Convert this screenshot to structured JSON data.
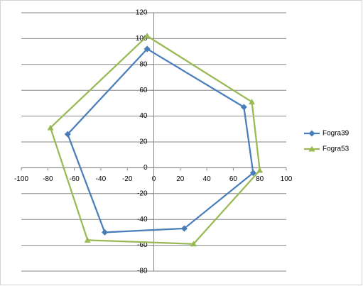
{
  "chart_data": {
    "type": "scatter",
    "lines": true,
    "series": [
      {
        "name": "Fogra39",
        "color": "#4a7ebb",
        "marker": "diamond",
        "x": [
          -5,
          68,
          75,
          23,
          -37,
          -65,
          -5
        ],
        "values": [
          92,
          47,
          -4,
          -47,
          -50,
          26,
          92
        ]
      },
      {
        "name": "Fogra53",
        "color": "#98b954",
        "marker": "triangle",
        "x": [
          -5,
          74,
          80,
          30,
          -50,
          -78,
          -5
        ],
        "values": [
          102,
          51,
          -2,
          -59,
          -56,
          31,
          102
        ]
      }
    ],
    "xlim": [
      -100,
      100
    ],
    "xticks": [
      -100,
      -80,
      -60,
      -40,
      -20,
      0,
      20,
      40,
      60,
      80,
      100
    ],
    "ylim": [
      -80,
      120
    ],
    "yticks": [
      -80,
      -60,
      -40,
      -20,
      0,
      20,
      40,
      60,
      80,
      100,
      120
    ],
    "grid": true,
    "legend": "right"
  }
}
